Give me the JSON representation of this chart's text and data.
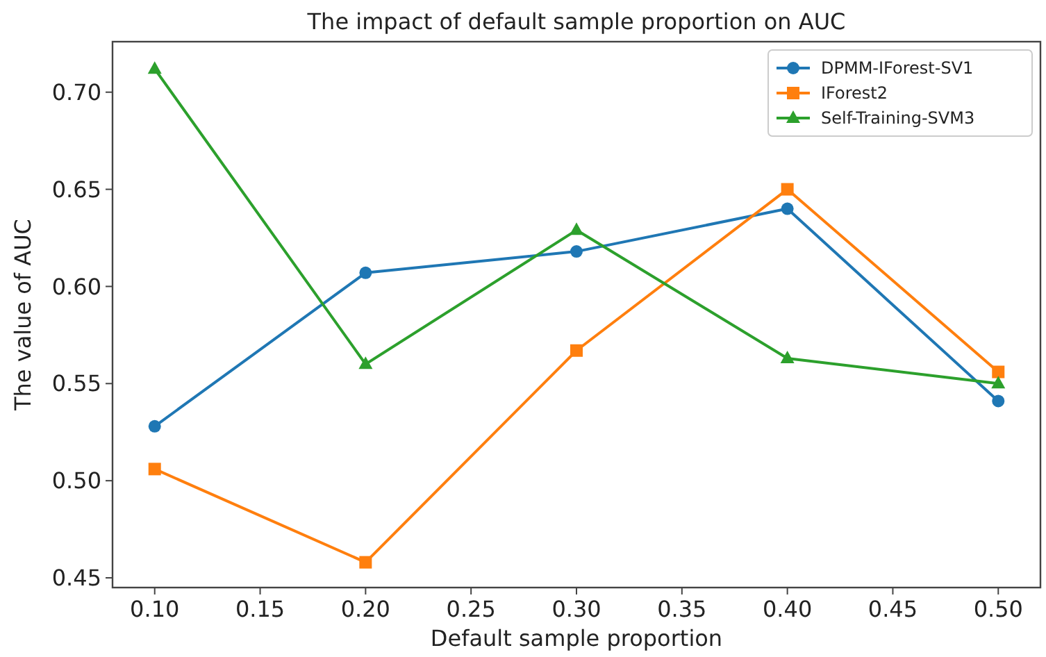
{
  "chart_data": {
    "type": "line",
    "title": "The impact of default sample proportion on AUC",
    "xlabel": "Default sample proportion",
    "ylabel": "The value of AUC",
    "x": [
      0.1,
      0.2,
      0.3,
      0.4,
      0.5
    ],
    "series": [
      {
        "name": "DPMM-IForest-SV1",
        "color": "#1f77b4",
        "marker": "circle",
        "values": [
          0.528,
          0.607,
          0.618,
          0.64,
          0.541
        ]
      },
      {
        "name": "IForest2",
        "color": "#ff7f0e",
        "marker": "square",
        "values": [
          0.506,
          0.458,
          0.567,
          0.65,
          0.556
        ]
      },
      {
        "name": "Self-Training-SVM3",
        "color": "#2ca02c",
        "marker": "triangle",
        "values": [
          0.712,
          0.56,
          0.629,
          0.563,
          0.55
        ]
      }
    ],
    "xlim": [
      0.08,
      0.52
    ],
    "xticks": [
      {
        "value": 0.1,
        "label": "0.10"
      },
      {
        "value": 0.15,
        "label": "0.15"
      },
      {
        "value": 0.2,
        "label": "0.20"
      },
      {
        "value": 0.25,
        "label": "0.25"
      },
      {
        "value": 0.3,
        "label": "0.30"
      },
      {
        "value": 0.35,
        "label": "0.35"
      },
      {
        "value": 0.4,
        "label": "0.40"
      },
      {
        "value": 0.45,
        "label": "0.45"
      },
      {
        "value": 0.5,
        "label": "0.50"
      }
    ],
    "ylim": [
      0.445,
      0.726
    ],
    "yticks": [
      {
        "value": 0.45,
        "label": "0.45"
      },
      {
        "value": 0.5,
        "label": "0.50"
      },
      {
        "value": 0.55,
        "label": "0.55"
      },
      {
        "value": 0.6,
        "label": "0.60"
      },
      {
        "value": 0.65,
        "label": "0.65"
      },
      {
        "value": 0.7,
        "label": "0.70"
      }
    ],
    "legend": "top right",
    "grid": false,
    "line_style": "solid"
  }
}
